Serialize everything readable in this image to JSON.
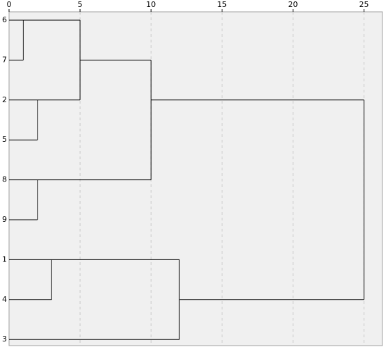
{
  "chart_data": {
    "type": "dendrogram",
    "xlim": [
      0,
      26.3
    ],
    "xticks": [
      0,
      5,
      10,
      15,
      20,
      25
    ],
    "grid": true,
    "color": "#000000",
    "tree": {
      "height": 25,
      "children": [
        {
          "height": 10,
          "children": [
            {
              "height": 5,
              "children": [
                {
                  "height": 1,
                  "children": [
                    {
                      "label": "6"
                    },
                    {
                      "label": "7"
                    }
                  ]
                },
                {
                  "height": 2,
                  "children": [
                    {
                      "label": "2"
                    },
                    {
                      "label": "5"
                    }
                  ]
                }
              ]
            },
            {
              "height": 2,
              "children": [
                {
                  "label": "8"
                },
                {
                  "label": "9"
                }
              ]
            }
          ]
        },
        {
          "height": 12,
          "children": [
            {
              "height": 3,
              "children": [
                {
                  "label": "1"
                },
                {
                  "label": "4"
                }
              ]
            },
            {
              "label": "3"
            }
          ]
        }
      ]
    }
  }
}
